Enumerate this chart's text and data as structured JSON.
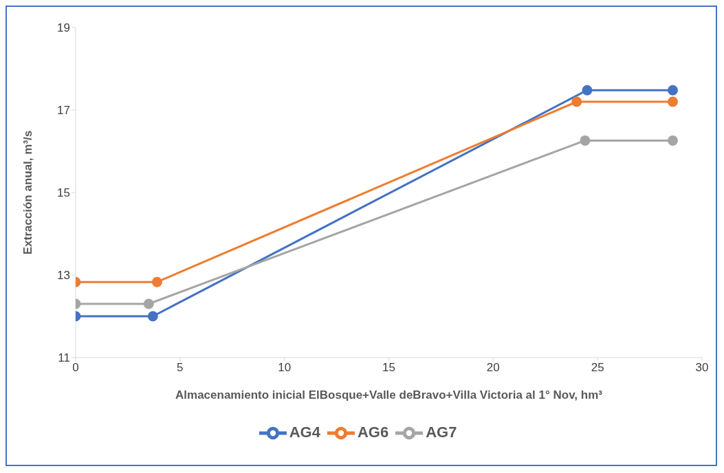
{
  "chart_data": {
    "type": "line",
    "xlabel": "Almacenamiento inicial ElBosque+Valle deBravo+Villa Victoria al 1° Nov, hm³",
    "ylabel": "Extracción anual, m³/s",
    "xlim": [
      0,
      30
    ],
    "xticks": [
      0,
      5,
      10,
      15,
      20,
      25,
      30
    ],
    "ylim": [
      11,
      19
    ],
    "yticks": [
      11,
      13,
      15,
      17,
      19
    ],
    "grid": false,
    "legend": "bottom",
    "marker": "circle",
    "line_style": "solid",
    "series": [
      {
        "name": "AG4",
        "color": "#4472c4",
        "x": [
          0,
          3.7,
          24.5,
          28.6
        ],
        "values": [
          12.0,
          12.0,
          17.48,
          17.48
        ]
      },
      {
        "name": "AG6",
        "color": "#ed7d31",
        "x": [
          0,
          3.9,
          24.0,
          28.6
        ],
        "values": [
          12.83,
          12.83,
          17.2,
          17.2
        ]
      },
      {
        "name": "AG7",
        "color": "#a5a5a5",
        "x": [
          0,
          3.5,
          24.4,
          28.6
        ],
        "values": [
          12.3,
          12.3,
          16.26,
          16.26
        ]
      }
    ]
  }
}
